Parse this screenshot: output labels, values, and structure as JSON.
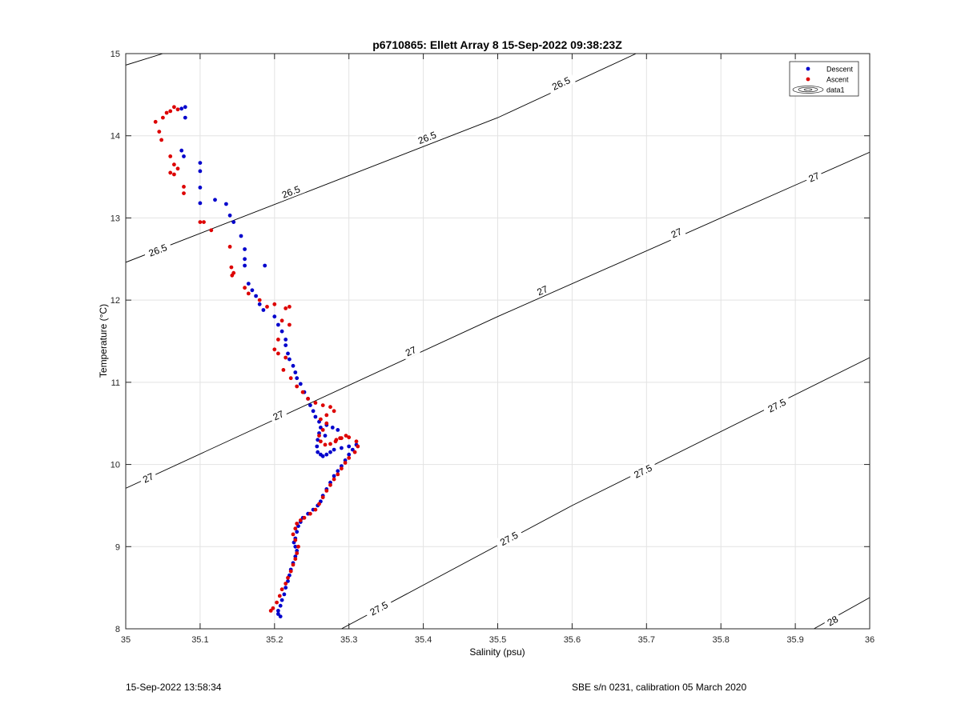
{
  "chart_data": {
    "type": "scatter",
    "title": "p6710865: Ellett Array 8 15-Sep-2022 09:38:23Z",
    "xlabel": "Salinity (psu)",
    "ylabel": "Temperature (°C)",
    "xlim": [
      35,
      36
    ],
    "ylim": [
      8,
      15
    ],
    "xticks": [
      "35",
      "35.1",
      "35.2",
      "35.3",
      "35.4",
      "35.5",
      "35.6",
      "35.7",
      "35.8",
      "35.9",
      "36"
    ],
    "yticks": [
      "8",
      "9",
      "10",
      "11",
      "12",
      "13",
      "14",
      "15"
    ],
    "grid": true,
    "legend_position": "top-right",
    "legend": [
      "Descent",
      "Ascent",
      "data1"
    ],
    "colors": {
      "descent": "#0000cc",
      "ascent": "#dd0000",
      "contour": "#000000",
      "grid": "#e3e3e3"
    },
    "series": [
      {
        "name": "Descent",
        "points": [
          [
            35.08,
            14.35
          ],
          [
            35.075,
            14.33
          ],
          [
            35.08,
            14.22
          ],
          [
            35.075,
            13.82
          ],
          [
            35.078,
            13.75
          ],
          [
            35.1,
            13.67
          ],
          [
            35.1,
            13.57
          ],
          [
            35.1,
            13.37
          ],
          [
            35.1,
            13.18
          ],
          [
            35.12,
            13.22
          ],
          [
            35.135,
            13.17
          ],
          [
            35.14,
            13.03
          ],
          [
            35.145,
            12.95
          ],
          [
            35.155,
            12.78
          ],
          [
            35.16,
            12.62
          ],
          [
            35.16,
            12.5
          ],
          [
            35.16,
            12.42
          ],
          [
            35.187,
            12.42
          ],
          [
            35.165,
            12.2
          ],
          [
            35.17,
            12.12
          ],
          [
            35.175,
            12.05
          ],
          [
            35.18,
            11.95
          ],
          [
            35.185,
            11.88
          ],
          [
            35.2,
            11.8
          ],
          [
            35.205,
            11.7
          ],
          [
            35.21,
            11.62
          ],
          [
            35.215,
            11.52
          ],
          [
            35.215,
            11.45
          ],
          [
            35.218,
            11.35
          ],
          [
            35.22,
            11.28
          ],
          [
            35.225,
            11.2
          ],
          [
            35.228,
            11.12
          ],
          [
            35.23,
            11.05
          ],
          [
            35.235,
            10.98
          ],
          [
            35.24,
            10.88
          ],
          [
            35.245,
            10.8
          ],
          [
            35.248,
            10.72
          ],
          [
            35.252,
            10.65
          ],
          [
            35.255,
            10.58
          ],
          [
            35.26,
            10.52
          ],
          [
            35.262,
            10.45
          ],
          [
            35.26,
            10.38
          ],
          [
            35.258,
            10.3
          ],
          [
            35.257,
            10.22
          ],
          [
            35.258,
            10.15
          ],
          [
            35.262,
            10.12
          ],
          [
            35.265,
            10.1
          ],
          [
            35.27,
            10.12
          ],
          [
            35.275,
            10.15
          ],
          [
            35.28,
            10.18
          ],
          [
            35.29,
            10.2
          ],
          [
            35.3,
            10.22
          ],
          [
            35.31,
            10.24
          ],
          [
            35.305,
            10.18
          ],
          [
            35.3,
            10.12
          ],
          [
            35.295,
            10.05
          ],
          [
            35.29,
            9.98
          ],
          [
            35.285,
            9.92
          ],
          [
            35.28,
            9.86
          ],
          [
            35.275,
            9.78
          ],
          [
            35.27,
            9.7
          ],
          [
            35.265,
            9.62
          ],
          [
            35.262,
            9.55
          ],
          [
            35.258,
            9.5
          ],
          [
            35.252,
            9.45
          ],
          [
            35.245,
            9.4
          ],
          [
            35.238,
            9.35
          ],
          [
            35.235,
            9.3
          ],
          [
            35.232,
            9.25
          ],
          [
            35.23,
            9.18
          ],
          [
            35.228,
            9.1
          ],
          [
            35.226,
            9.05
          ],
          [
            35.228,
            9.0
          ],
          [
            35.23,
            8.95
          ],
          [
            35.228,
            8.88
          ],
          [
            35.225,
            8.8
          ],
          [
            35.222,
            8.72
          ],
          [
            35.22,
            8.65
          ],
          [
            35.218,
            8.58
          ],
          [
            35.215,
            8.5
          ],
          [
            35.213,
            8.42
          ],
          [
            35.21,
            8.35
          ],
          [
            35.208,
            8.28
          ],
          [
            35.205,
            8.22
          ],
          [
            35.205,
            8.18
          ],
          [
            35.208,
            8.15
          ],
          [
            35.27,
            10.48
          ],
          [
            35.278,
            10.45
          ],
          [
            35.285,
            10.42
          ],
          [
            35.268,
            10.35
          ]
        ]
      },
      {
        "name": "Ascent",
        "points": [
          [
            35.065,
            14.35
          ],
          [
            35.07,
            14.32
          ],
          [
            35.06,
            14.3
          ],
          [
            35.055,
            14.28
          ],
          [
            35.05,
            14.22
          ],
          [
            35.04,
            14.17
          ],
          [
            35.045,
            14.05
          ],
          [
            35.048,
            13.95
          ],
          [
            35.06,
            13.75
          ],
          [
            35.065,
            13.65
          ],
          [
            35.07,
            13.6
          ],
          [
            35.06,
            13.55
          ],
          [
            35.065,
            13.53
          ],
          [
            35.078,
            13.38
          ],
          [
            35.078,
            13.3
          ],
          [
            35.1,
            12.95
          ],
          [
            35.105,
            12.95
          ],
          [
            35.115,
            12.85
          ],
          [
            35.14,
            12.65
          ],
          [
            35.142,
            12.4
          ],
          [
            35.145,
            12.33
          ],
          [
            35.143,
            12.3
          ],
          [
            35.16,
            12.15
          ],
          [
            35.165,
            12.08
          ],
          [
            35.18,
            12.0
          ],
          [
            35.19,
            11.92
          ],
          [
            35.2,
            11.95
          ],
          [
            35.215,
            11.9
          ],
          [
            35.22,
            11.92
          ],
          [
            35.21,
            11.75
          ],
          [
            35.22,
            11.7
          ],
          [
            35.205,
            11.52
          ],
          [
            35.2,
            11.4
          ],
          [
            35.205,
            11.35
          ],
          [
            35.215,
            11.3
          ],
          [
            35.212,
            11.15
          ],
          [
            35.222,
            11.05
          ],
          [
            35.23,
            10.95
          ],
          [
            35.238,
            10.88
          ],
          [
            35.245,
            10.8
          ],
          [
            35.255,
            10.75
          ],
          [
            35.265,
            10.72
          ],
          [
            35.275,
            10.7
          ],
          [
            35.28,
            10.65
          ],
          [
            35.27,
            10.6
          ],
          [
            35.262,
            10.55
          ],
          [
            35.27,
            10.5
          ],
          [
            35.265,
            10.42
          ],
          [
            35.26,
            10.35
          ],
          [
            35.262,
            10.28
          ],
          [
            35.268,
            10.24
          ],
          [
            35.275,
            10.25
          ],
          [
            35.282,
            10.28
          ],
          [
            35.29,
            10.32
          ],
          [
            35.3,
            10.33
          ],
          [
            35.31,
            10.28
          ],
          [
            35.312,
            10.22
          ],
          [
            35.308,
            10.15
          ],
          [
            35.3,
            10.08
          ],
          [
            35.295,
            10.02
          ],
          [
            35.29,
            9.95
          ],
          [
            35.285,
            9.88
          ],
          [
            35.28,
            9.82
          ],
          [
            35.275,
            9.75
          ],
          [
            35.27,
            9.68
          ],
          [
            35.265,
            9.6
          ],
          [
            35.26,
            9.52
          ],
          [
            35.255,
            9.45
          ],
          [
            35.248,
            9.4
          ],
          [
            35.24,
            9.35
          ],
          [
            35.235,
            9.32
          ],
          [
            35.23,
            9.28
          ],
          [
            35.228,
            9.22
          ],
          [
            35.225,
            9.15
          ],
          [
            35.228,
            9.08
          ],
          [
            35.232,
            9.0
          ],
          [
            35.23,
            8.92
          ],
          [
            35.228,
            8.85
          ],
          [
            35.225,
            8.78
          ],
          [
            35.222,
            8.7
          ],
          [
            35.218,
            8.62
          ],
          [
            35.215,
            8.55
          ],
          [
            35.21,
            8.48
          ],
          [
            35.207,
            8.4
          ],
          [
            35.203,
            8.32
          ],
          [
            35.198,
            8.25
          ],
          [
            35.195,
            8.22
          ],
          [
            35.288,
            10.32
          ],
          [
            35.296,
            10.35
          ],
          [
            35.283,
            10.3
          ]
        ]
      }
    ],
    "contours": [
      {
        "level": "26.5",
        "points": [
          [
            35.0,
            12.46
          ],
          [
            35.5,
            14.22
          ],
          [
            35.686,
            15.0
          ]
        ],
        "labels": [
          [
            35.043,
            12.61
          ],
          [
            35.222,
            13.32
          ],
          [
            35.405,
            13.98
          ],
          [
            35.585,
            14.64
          ]
        ]
      },
      {
        "level": "26.5",
        "points": [
          [
            35.0,
            14.86
          ],
          [
            35.05,
            15.0
          ]
        ],
        "labels": []
      },
      {
        "level": "27",
        "points": [
          [
            35.0,
            9.71
          ],
          [
            35.5,
            11.8
          ],
          [
            36.0,
            13.8
          ]
        ],
        "labels": [
          [
            35.03,
            9.84
          ],
          [
            35.205,
            10.6
          ],
          [
            35.383,
            11.38
          ],
          [
            35.56,
            12.12
          ],
          [
            35.74,
            12.82
          ],
          [
            35.925,
            13.5
          ]
        ]
      },
      {
        "level": "27.5",
        "points": [
          [
            35.29,
            8.0
          ],
          [
            35.6,
            9.5
          ],
          [
            36.0,
            11.3
          ]
        ],
        "labels": [
          [
            35.34,
            8.25
          ],
          [
            35.515,
            9.1
          ],
          [
            35.695,
            9.92
          ],
          [
            35.875,
            10.72
          ]
        ]
      },
      {
        "level": "28",
        "points": [
          [
            35.925,
            8.0
          ],
          [
            36.0,
            8.38
          ]
        ],
        "labels": [
          [
            35.95,
            8.1
          ]
        ]
      }
    ]
  },
  "footer": {
    "timestamp": "15-Sep-2022 13:58:34",
    "instrument": "SBE s/n 0231, calibration 05 March 2020"
  }
}
